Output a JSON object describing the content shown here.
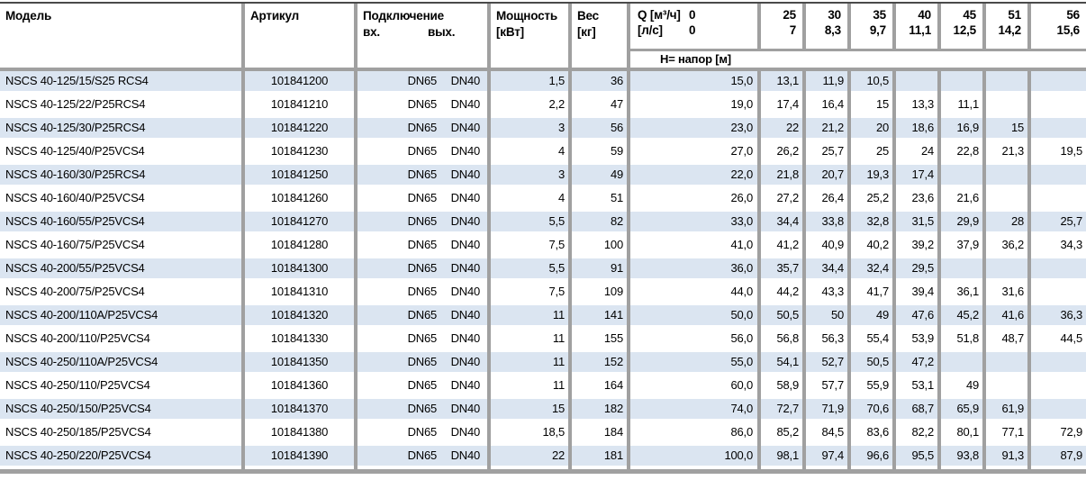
{
  "colors": {
    "row_blue": "#dbe5f1",
    "separator_gray": "#a0a0a0",
    "top_border": "#4a4a4a"
  },
  "table": {
    "headers": {
      "model": "Модель",
      "articul": "Артикул",
      "connection": "Подключение",
      "inlet": "вх.",
      "outlet": "вых.",
      "power_line1": "Мощность",
      "power_line2": "[кВт]",
      "weight_line1": "Вес",
      "weight_line2": "[кг]",
      "q_label": "Q [м³/ч]",
      "q_zero": "0",
      "ls_label": "[л/с]",
      "ls_zero": "0",
      "head_label": "Н= напор [м]",
      "flow_m3h": [
        "25",
        "30",
        "35",
        "40",
        "45",
        "51",
        "56"
      ],
      "flow_ls": [
        "7",
        "8,3",
        "9,7",
        "11,1",
        "12,5",
        "14,2",
        "15,6"
      ]
    },
    "rows": [
      {
        "model": "NSCS 40-125/15/S25 RCS4",
        "articul": "101841200",
        "inlet": "DN65",
        "outlet": "DN40",
        "power": "1,5",
        "weight": "36",
        "heads": [
          "15,0",
          "13,1",
          "11,9",
          "10,5",
          "",
          "",
          "",
          ""
        ]
      },
      {
        "model": "NSCS 40-125/22/P25RCS4",
        "articul": "101841210",
        "inlet": "DN65",
        "outlet": "DN40",
        "power": "2,2",
        "weight": "47",
        "heads": [
          "19,0",
          "17,4",
          "16,4",
          "15",
          "13,3",
          "11,1",
          "",
          ""
        ]
      },
      {
        "model": "NSCS 40-125/30/P25RCS4",
        "articul": "101841220",
        "inlet": "DN65",
        "outlet": "DN40",
        "power": "3",
        "weight": "56",
        "heads": [
          "23,0",
          "22",
          "21,2",
          "20",
          "18,6",
          "16,9",
          "15",
          ""
        ]
      },
      {
        "model": "NSCS 40-125/40/P25VCS4",
        "articul": "101841230",
        "inlet": "DN65",
        "outlet": "DN40",
        "power": "4",
        "weight": "59",
        "heads": [
          "27,0",
          "26,2",
          "25,7",
          "25",
          "24",
          "22,8",
          "21,3",
          "19,5"
        ]
      },
      {
        "model": "NSCS 40-160/30/P25RCS4",
        "articul": "101841250",
        "inlet": "DN65",
        "outlet": "DN40",
        "power": "3",
        "weight": "49",
        "heads": [
          "22,0",
          "21,8",
          "20,7",
          "19,3",
          "17,4",
          "",
          "",
          ""
        ]
      },
      {
        "model": "NSCS 40-160/40/P25VCS4",
        "articul": "101841260",
        "inlet": "DN65",
        "outlet": "DN40",
        "power": "4",
        "weight": "51",
        "heads": [
          "26,0",
          "27,2",
          "26,4",
          "25,2",
          "23,6",
          "21,6",
          "",
          ""
        ]
      },
      {
        "model": "NSCS 40-160/55/P25VCS4",
        "articul": "101841270",
        "inlet": "DN65",
        "outlet": "DN40",
        "power": "5,5",
        "weight": "82",
        "heads": [
          "33,0",
          "34,4",
          "33,8",
          "32,8",
          "31,5",
          "29,9",
          "28",
          "25,7"
        ]
      },
      {
        "model": "NSCS 40-160/75/P25VCS4",
        "articul": "101841280",
        "inlet": "DN65",
        "outlet": "DN40",
        "power": "7,5",
        "weight": "100",
        "heads": [
          "41,0",
          "41,2",
          "40,9",
          "40,2",
          "39,2",
          "37,9",
          "36,2",
          "34,3"
        ]
      },
      {
        "model": "NSCS 40-200/55/P25VCS4",
        "articul": "101841300",
        "inlet": "DN65",
        "outlet": "DN40",
        "power": "5,5",
        "weight": "91",
        "heads": [
          "36,0",
          "35,7",
          "34,4",
          "32,4",
          "29,5",
          "",
          "",
          ""
        ]
      },
      {
        "model": "NSCS 40-200/75/P25VCS4",
        "articul": "101841310",
        "inlet": "DN65",
        "outlet": "DN40",
        "power": "7,5",
        "weight": "109",
        "heads": [
          "44,0",
          "44,2",
          "43,3",
          "41,7",
          "39,4",
          "36,1",
          "31,6",
          ""
        ]
      },
      {
        "model": "NSCS 40-200/110A/P25VCS4",
        "articul": "101841320",
        "inlet": "DN65",
        "outlet": "DN40",
        "power": "11",
        "weight": "141",
        "heads": [
          "50,0",
          "50,5",
          "50",
          "49",
          "47,6",
          "45,2",
          "41,6",
          "36,3"
        ]
      },
      {
        "model": "NSCS 40-200/110/P25VCS4",
        "articul": "101841330",
        "inlet": "DN65",
        "outlet": "DN40",
        "power": "11",
        "weight": "155",
        "heads": [
          "56,0",
          "56,8",
          "56,3",
          "55,4",
          "53,9",
          "51,8",
          "48,7",
          "44,5"
        ]
      },
      {
        "model": "NSCS 40-250/110A/P25VCS4",
        "articul": "101841350",
        "inlet": "DN65",
        "outlet": "DN40",
        "power": "11",
        "weight": "152",
        "heads": [
          "55,0",
          "54,1",
          "52,7",
          "50,5",
          "47,2",
          "",
          "",
          ""
        ]
      },
      {
        "model": "NSCS 40-250/110/P25VCS4",
        "articul": "101841360",
        "inlet": "DN65",
        "outlet": "DN40",
        "power": "11",
        "weight": "164",
        "heads": [
          "60,0",
          "58,9",
          "57,7",
          "55,9",
          "53,1",
          "49",
          "",
          ""
        ]
      },
      {
        "model": "NSCS 40-250/150/P25VCS4",
        "articul": "101841370",
        "inlet": "DN65",
        "outlet": "DN40",
        "power": "15",
        "weight": "182",
        "heads": [
          "74,0",
          "72,7",
          "71,9",
          "70,6",
          "68,7",
          "65,9",
          "61,9",
          ""
        ]
      },
      {
        "model": "NSCS 40-250/185/P25VCS4",
        "articul": "101841380",
        "inlet": "DN65",
        "outlet": "DN40",
        "power": "18,5",
        "weight": "184",
        "heads": [
          "86,0",
          "85,2",
          "84,5",
          "83,6",
          "82,2",
          "80,1",
          "77,1",
          "72,9"
        ]
      },
      {
        "model": "NSCS 40-250/220/P25VCS4",
        "articul": "101841390",
        "inlet": "DN65",
        "outlet": "DN40",
        "power": "22",
        "weight": "181",
        "heads": [
          "100,0",
          "98,1",
          "97,4",
          "96,6",
          "95,5",
          "93,8",
          "91,3",
          "87,9"
        ]
      }
    ]
  }
}
